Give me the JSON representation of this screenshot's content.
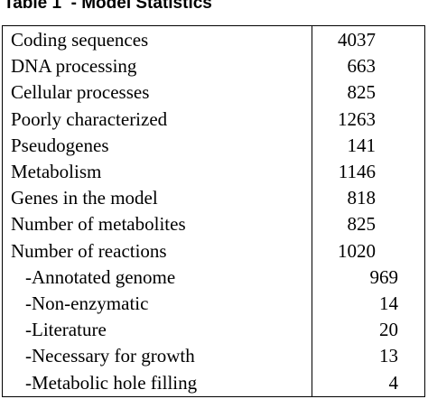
{
  "title": "Table 1  - Model Statistics",
  "table": {
    "rows": [
      [
        "Coding sequences",
        4037
      ],
      [
        "DNA processing",
        663
      ],
      [
        "Cellular processes",
        825
      ],
      [
        "Poorly characterized",
        1263
      ],
      [
        "Pseudogenes",
        141
      ],
      [
        "Metabolism",
        1146
      ],
      [
        "Genes in the model",
        818
      ],
      [
        "Number of metabolites",
        825
      ],
      [
        "Number of reactions",
        1020
      ]
    ],
    "sub_rows": [
      [
        "-Annotated genome",
        969
      ],
      [
        "-Non-enzymatic",
        14
      ],
      [
        "-Literature",
        20
      ],
      [
        "-Necessary for growth",
        13
      ],
      [
        "-Metabolic hole filling",
        4
      ]
    ]
  }
}
